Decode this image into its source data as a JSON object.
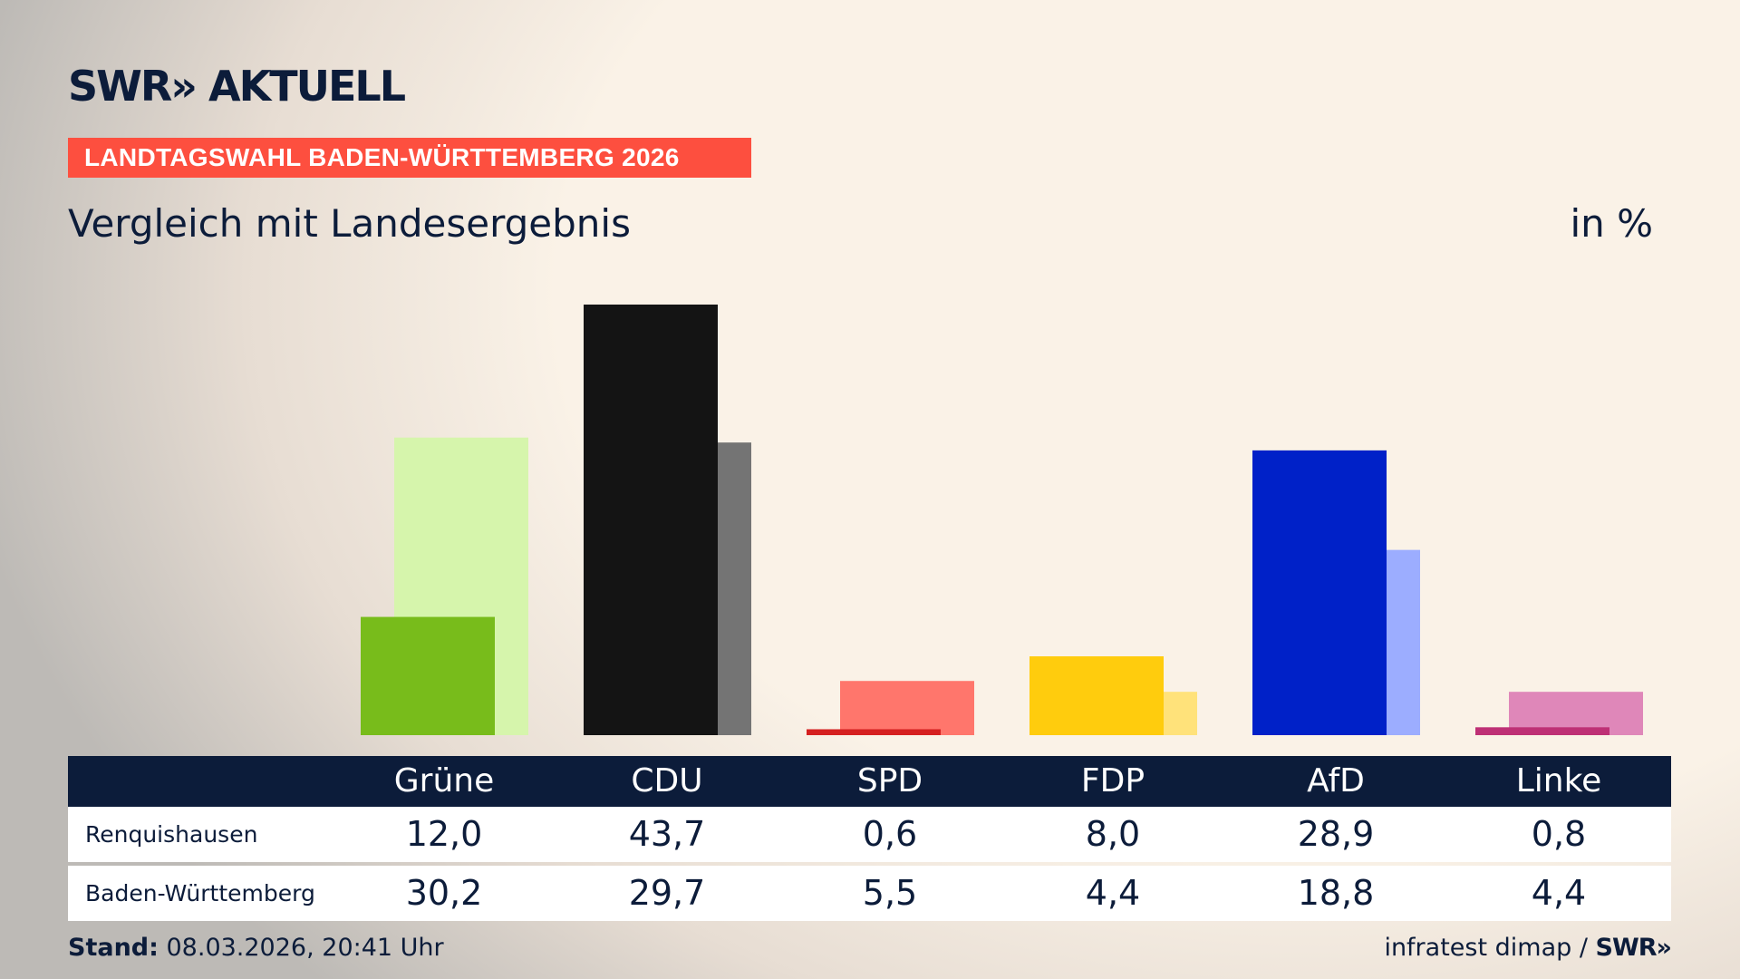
{
  "header": {
    "logo": "SWR» AKTUELL",
    "banner": "LANDTAGSWAHL BADEN-WÜRTTEMBERG 2026",
    "subtitle": "Vergleich mit Landesergebnis",
    "unit": "in %"
  },
  "footer": {
    "stand_label": "Stand:",
    "stand_value": " 08.03.2026, 20:41 Uhr",
    "source": "infratest dimap / ",
    "source_logo": "SWR»"
  },
  "chart_data": {
    "type": "bar",
    "categories": [
      "Grüne",
      "CDU",
      "SPD",
      "FDP",
      "AfD",
      "Linke"
    ],
    "series": [
      {
        "name": "Renquishausen",
        "values": [
          12.0,
          43.7,
          0.6,
          8.0,
          28.9,
          0.8
        ],
        "labels": [
          "12,0",
          "43,7",
          "0,6",
          "8,0",
          "28,9",
          "0,8"
        ],
        "colors": [
          "#78bc1b",
          "#141414",
          "#d52020",
          "#ffcc0d",
          "#0021c8",
          "#be3075"
        ]
      },
      {
        "name": "Baden-Württemberg",
        "values": [
          30.2,
          29.7,
          5.5,
          4.4,
          18.8,
          4.4
        ],
        "labels": [
          "30,2",
          "29,7",
          "5,5",
          "4,4",
          "18,8",
          "4,4"
        ],
        "colors": [
          "#d6f5ac",
          "#747474",
          "#ff766c",
          "#ffe27a",
          "#9cadff",
          "#df87b9"
        ]
      }
    ]
  }
}
